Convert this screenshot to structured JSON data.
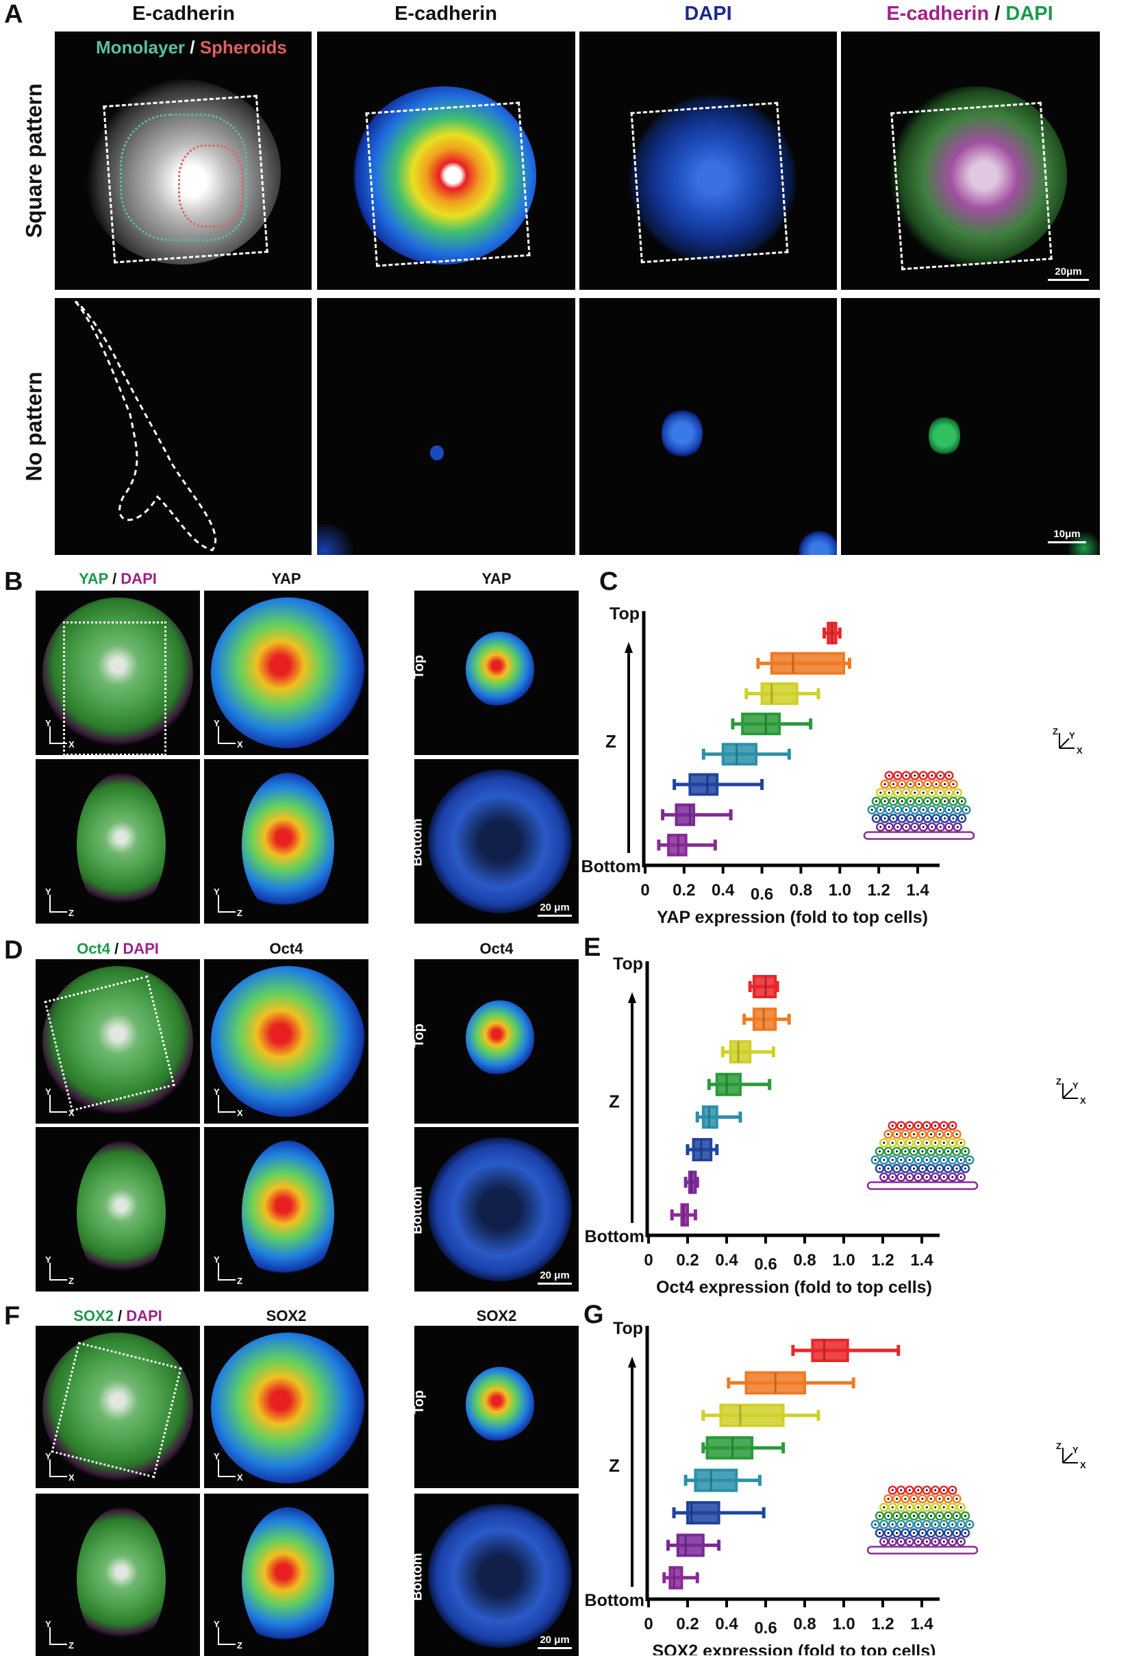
{
  "panels": {
    "A": "A",
    "B": "B",
    "C": "C",
    "D": "D",
    "E": "E",
    "F": "F",
    "G": "G"
  },
  "panel_a": {
    "headers": [
      "E-cadherin",
      "E-cadherin",
      "DAPI"
    ],
    "merge_header": {
      "part1": "E-cadherin",
      "sep": " / ",
      "part2": "DAPI"
    },
    "legend": {
      "part1": "Monolayer",
      "sep": " / ",
      "part2": "Spheroids"
    },
    "row_labels": [
      "Square pattern",
      "No pattern"
    ],
    "scale_bars": [
      "20μm",
      "10μm"
    ]
  },
  "panel_b": {
    "merge_header": {
      "part1": "YAP",
      "sep": " / ",
      "part2": "DAPI"
    },
    "headers": [
      "YAP",
      "YAP"
    ]
  },
  "panel_d": {
    "merge_header": {
      "part1": "Oct4",
      "sep": " / ",
      "part2": "DAPI"
    },
    "headers": [
      "Oct4",
      "Oct4"
    ]
  },
  "panel_f": {
    "merge_header": {
      "part1": "SOX2",
      "sep": " / ",
      "part2": "DAPI"
    },
    "headers": [
      "SOX2",
      "SOX2"
    ]
  },
  "image_labels": {
    "top": "Top",
    "bottom": "Bottom",
    "scale": "20 μm",
    "x": "X",
    "y": "Y",
    "z": "Z"
  },
  "colors": {
    "layers": [
      "#e8262a",
      "#f07a22",
      "#d0d02a",
      "#2a9a3a",
      "#2a90a8",
      "#1e44a0",
      "#7a2a98",
      "#8a2a98"
    ],
    "green": "#1a9a4a",
    "magenta": "#a0208a",
    "dapi_blue": "#1a2a8a",
    "monolayer": "#5ac0a0",
    "spheroids": "#e06060"
  },
  "chart_data": [
    {
      "type": "boxplot",
      "id": "C",
      "xlabel": "YAP expression (fold to top cells)",
      "ylabel": "Z",
      "ytop": "Top",
      "ybottom": "Bottom",
      "xlim": [
        0,
        1.4
      ],
      "xticks": [
        "0",
        "0.2",
        "0.4",
        "0.6",
        "0.8",
        "1.0",
        "1.2",
        "1.4"
      ],
      "legend_axes": [
        "Z",
        "Y",
        "X"
      ],
      "series": [
        [
          0.92,
          0.94,
          0.96,
          0.98,
          1.0
        ],
        [
          0.58,
          0.65,
          0.76,
          1.02,
          1.05
        ],
        [
          0.52,
          0.6,
          0.65,
          0.78,
          0.89
        ],
        [
          0.45,
          0.5,
          0.62,
          0.69,
          0.85
        ],
        [
          0.3,
          0.4,
          0.47,
          0.57,
          0.74
        ],
        [
          0.15,
          0.23,
          0.32,
          0.37,
          0.6
        ],
        [
          0.09,
          0.16,
          0.23,
          0.25,
          0.44
        ],
        [
          0.07,
          0.12,
          0.17,
          0.21,
          0.36
        ]
      ]
    },
    {
      "type": "boxplot",
      "id": "E",
      "xlabel": "Oct4 expression (fold to top cells)",
      "ylabel": "Z",
      "ytop": "Top",
      "ybottom": "Bottom",
      "xlim": [
        0,
        1.4
      ],
      "xticks": [
        "0",
        "0.2",
        "0.4",
        "0.6",
        "0.8",
        "1.0",
        "1.2",
        "1.4"
      ],
      "legend_axes": [
        "Z",
        "Y",
        "X"
      ],
      "series": [
        [
          0.52,
          0.54,
          0.6,
          0.65,
          0.66
        ],
        [
          0.49,
          0.54,
          0.59,
          0.65,
          0.72
        ],
        [
          0.38,
          0.42,
          0.46,
          0.52,
          0.64
        ],
        [
          0.31,
          0.35,
          0.4,
          0.47,
          0.62
        ],
        [
          0.25,
          0.28,
          0.31,
          0.35,
          0.47
        ],
        [
          0.2,
          0.23,
          0.27,
          0.32,
          0.35
        ],
        [
          0.19,
          0.21,
          0.22,
          0.24,
          0.25
        ],
        [
          0.12,
          0.17,
          0.18,
          0.2,
          0.24
        ]
      ]
    },
    {
      "type": "boxplot",
      "id": "G",
      "xlabel": "SOX2 expression (fold to top cells)",
      "ylabel": "Z",
      "ytop": "Top",
      "ybottom": "Bottom",
      "xlim": [
        0,
        1.4
      ],
      "xticks": [
        "0",
        "0.2",
        "0.4",
        "0.6",
        "0.8",
        "1.0",
        "1.2",
        "1.4"
      ],
      "legend_axes": [
        "Z",
        "Y",
        "X"
      ],
      "series": [
        [
          0.74,
          0.84,
          0.9,
          1.02,
          1.28
        ],
        [
          0.41,
          0.5,
          0.65,
          0.8,
          1.05
        ],
        [
          0.28,
          0.37,
          0.47,
          0.69,
          0.87
        ],
        [
          0.28,
          0.3,
          0.43,
          0.53,
          0.69
        ],
        [
          0.19,
          0.24,
          0.32,
          0.45,
          0.57
        ],
        [
          0.13,
          0.2,
          0.22,
          0.36,
          0.59
        ],
        [
          0.1,
          0.15,
          0.19,
          0.28,
          0.36
        ],
        [
          0.08,
          0.11,
          0.13,
          0.17,
          0.25
        ]
      ]
    }
  ]
}
